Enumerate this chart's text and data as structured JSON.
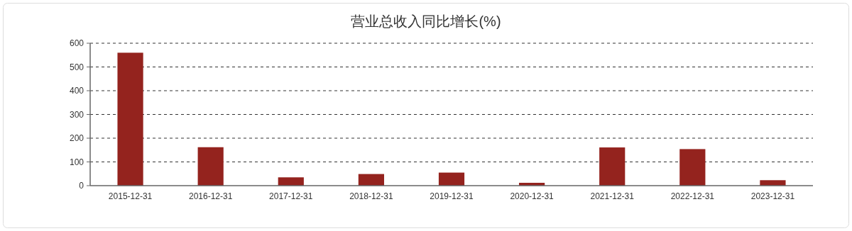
{
  "chart_data": {
    "type": "bar",
    "title": "营业总收入同比增长(%)",
    "categories": [
      "2015-12-31",
      "2016-12-31",
      "2017-12-31",
      "2018-12-31",
      "2019-12-31",
      "2020-12-31",
      "2021-12-31",
      "2022-12-31",
      "2023-12-31"
    ],
    "values": [
      560,
      162,
      35,
      49,
      55,
      12,
      161,
      154,
      23
    ],
    "color": "#94231e",
    "ylim": [
      0,
      600
    ],
    "yticks": [
      0,
      100,
      200,
      300,
      400,
      500,
      600
    ],
    "grid": "y"
  }
}
